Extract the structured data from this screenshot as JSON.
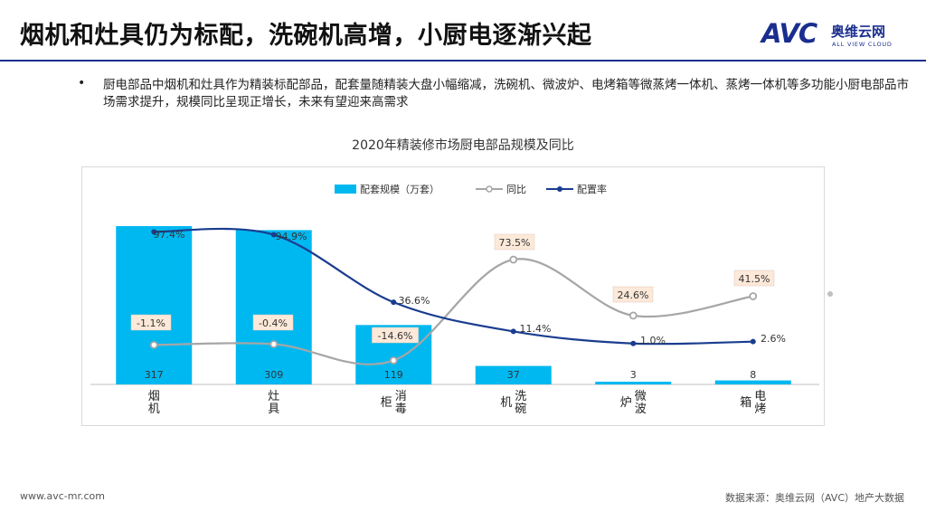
{
  "title": "烟机和灶具仍为标配，洗碗机高增，小厨电逐渐兴起",
  "logo": {
    "mark": "AVC",
    "cn": "奥维云网",
    "en": "ALL VIEW CLOUD"
  },
  "bullet_text": "厨电部品中烟机和灶具作为精装标配部品，配套量随精装大盘小幅缩减，洗碗机、微波炉、电烤箱等微蒸烤一体机、蒸烤一体机等多功能小厨电部品市场需求提升，规模同比呈现正增长，未来有望迎来高需求",
  "footer": {
    "url": "www.avc-mr.com",
    "source": "数据来源：奥维云网（AVC）地产大数据"
  },
  "colors": {
    "bar": "#00b8f0",
    "yoy": "#a6a6a6",
    "rate": "#1a3d8f",
    "label_box": "#fde9d9"
  },
  "chart_data": {
    "type": "bar",
    "title": "2020年精装修市场厨电部品规模及同比",
    "categories": [
      "烟机",
      "灶具",
      "消毒柜",
      "洗碗机",
      "微波炉",
      "电烤箱"
    ],
    "category_lines": [
      [
        "烟",
        "机"
      ],
      [
        "灶",
        "具"
      ],
      [
        "消",
        "毒",
        "柜"
      ],
      [
        "洗",
        "碗",
        "机"
      ],
      [
        "微",
        "波",
        "炉"
      ],
      [
        "电",
        "烤",
        "箱"
      ]
    ],
    "legend": [
      "配套规模（万套）",
      "同比",
      "配置率"
    ],
    "legend_position": "top",
    "series": [
      {
        "name": "配套规模（万套）",
        "type": "bar",
        "values": [
          317,
          309,
          119,
          37,
          3,
          8
        ],
        "labels": [
          "317",
          "309",
          "119",
          "37",
          "3",
          "8"
        ]
      },
      {
        "name": "同比",
        "type": "line",
        "values": [
          -1.1,
          -0.4,
          -14.6,
          73.5,
          24.6,
          41.5
        ],
        "labels": [
          "-1.1%",
          "-0.4%",
          "-14.6%",
          "73.5%",
          "24.6%",
          "41.5%"
        ]
      },
      {
        "name": "配置率",
        "type": "line",
        "values": [
          97.4,
          94.9,
          36.6,
          11.4,
          1.0,
          2.6
        ],
        "labels": [
          "97.4%",
          "94.9%",
          "36.6%",
          "11.4%",
          "1.0%",
          "2.6%"
        ]
      }
    ],
    "grid": false
  }
}
